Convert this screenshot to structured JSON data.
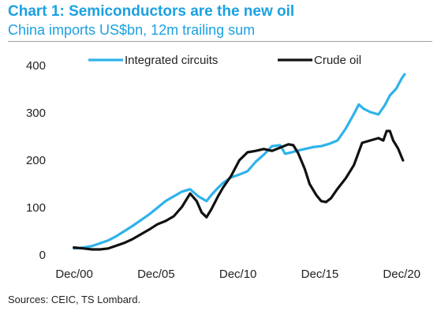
{
  "header": {
    "title": "Chart 1: Semiconductors are the new oil",
    "subtitle": "China imports US$bn, 12m trailing sum"
  },
  "footer": {
    "source": "Sources: CEIC, TS Lombard."
  },
  "colors": {
    "title": "#1ba1e2",
    "text": "#222222",
    "ic_series": "#2fb2ea",
    "oil_series": "#111111",
    "rule": "#9aa0a6"
  },
  "chart_data": {
    "type": "line",
    "title": "Chart 1: Semiconductors are the new oil",
    "subtitle": "China imports US$bn, 12m trailing sum",
    "xlabel": "",
    "ylabel": "",
    "xlim": [
      2000.0,
      2021.2
    ],
    "ylim": [
      0,
      400
    ],
    "grid": false,
    "legend": "top",
    "yticks": [
      0,
      100,
      200,
      300,
      400
    ],
    "yticklabels": [
      "0",
      "100",
      "200",
      "300",
      "400"
    ],
    "xticks": [
      2000.92,
      2005.92,
      2010.92,
      2015.92,
      2020.92
    ],
    "xticklabels": [
      "Dec/00",
      "Dec/05",
      "Dec/10",
      "Dec/15",
      "Dec/20"
    ],
    "series": [
      {
        "name": "Integrated circuits",
        "color": "#2fb2ea",
        "x": [
          2000.9,
          2001.5,
          2002.0,
          2002.5,
          2003.0,
          2003.5,
          2004.0,
          2004.5,
          2005.0,
          2005.5,
          2006.0,
          2006.5,
          2007.0,
          2007.5,
          2008.0,
          2008.5,
          2009.0,
          2009.3,
          2009.7,
          2010.0,
          2010.5,
          2011.0,
          2011.5,
          2012.0,
          2012.5,
          2013.0,
          2013.5,
          2013.8,
          2014.2,
          2014.5,
          2015.0,
          2015.5,
          2016.0,
          2016.5,
          2017.0,
          2017.5,
          2018.0,
          2018.3,
          2018.6,
          2019.0,
          2019.5,
          2019.9,
          2020.2,
          2020.6,
          2020.9,
          2021.1
        ],
        "values": [
          12,
          14,
          17,
          23,
          29,
          38,
          49,
          60,
          72,
          84,
          98,
          112,
          122,
          132,
          137,
          122,
          112,
          125,
          140,
          150,
          162,
          168,
          175,
          195,
          210,
          228,
          230,
          212,
          215,
          218,
          222,
          226,
          228,
          233,
          240,
          265,
          296,
          316,
          307,
          300,
          295,
          315,
          335,
          350,
          370,
          380
        ]
      },
      {
        "name": "Crude oil",
        "color": "#111111",
        "x": [
          2000.9,
          2001.5,
          2002.0,
          2002.5,
          2003.0,
          2003.5,
          2004.0,
          2004.5,
          2005.0,
          2005.5,
          2006.0,
          2006.5,
          2007.0,
          2007.5,
          2008.0,
          2008.4,
          2008.7,
          2009.0,
          2009.3,
          2009.7,
          2010.0,
          2010.5,
          2011.0,
          2011.5,
          2012.0,
          2012.5,
          2013.0,
          2013.5,
          2014.0,
          2014.3,
          2014.6,
          2015.0,
          2015.3,
          2015.7,
          2016.0,
          2016.3,
          2016.6,
          2017.0,
          2017.5,
          2018.0,
          2018.5,
          2019.0,
          2019.5,
          2019.8,
          2020.0,
          2020.2,
          2020.4,
          2020.7,
          2021.0
        ],
        "values": [
          14,
          12,
          10,
          10,
          12,
          18,
          24,
          32,
          42,
          52,
          63,
          70,
          80,
          100,
          128,
          112,
          88,
          78,
          95,
          122,
          140,
          165,
          198,
          215,
          218,
          222,
          218,
          225,
          232,
          230,
          213,
          180,
          148,
          125,
          112,
          110,
          118,
          138,
          160,
          188,
          235,
          240,
          245,
          240,
          260,
          260,
          240,
          223,
          198
        ]
      }
    ]
  }
}
